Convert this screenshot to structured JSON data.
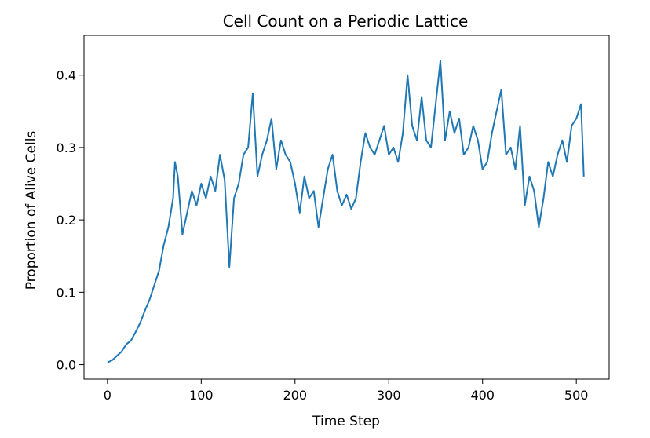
{
  "chart_data": {
    "type": "line",
    "title": "Cell Count on a Periodic Lattice",
    "xlabel": "Time Step",
    "ylabel": "Proportion of Alive Cells",
    "xlim": [
      -25,
      535
    ],
    "ylim": [
      -0.02,
      0.455
    ],
    "xticks": [
      0,
      100,
      200,
      300,
      400,
      500
    ],
    "xtick_labels": [
      "0",
      "100",
      "200",
      "300",
      "400",
      "500"
    ],
    "yticks": [
      0.0,
      0.1,
      0.2,
      0.3,
      0.4
    ],
    "ytick_labels": [
      "0.0",
      "0.1",
      "0.2",
      "0.3",
      "0.4"
    ],
    "grid": false,
    "legend": "none",
    "series": [
      {
        "color": "#1f77b4",
        "x": [
          0,
          5,
          10,
          15,
          20,
          25,
          30,
          35,
          40,
          45,
          50,
          55,
          60,
          65,
          70,
          72,
          75,
          80,
          85,
          90,
          95,
          100,
          105,
          110,
          115,
          120,
          125,
          130,
          135,
          140,
          145,
          150,
          155,
          160,
          165,
          170,
          175,
          180,
          185,
          190,
          195,
          200,
          205,
          210,
          215,
          220,
          225,
          230,
          235,
          240,
          245,
          250,
          255,
          260,
          265,
          270,
          275,
          280,
          285,
          290,
          295,
          300,
          305,
          310,
          315,
          320,
          325,
          330,
          335,
          340,
          345,
          350,
          355,
          360,
          365,
          370,
          375,
          380,
          385,
          390,
          395,
          400,
          405,
          410,
          415,
          420,
          425,
          430,
          435,
          440,
          445,
          450,
          455,
          460,
          465,
          470,
          475,
          480,
          485,
          490,
          495,
          500,
          505,
          508
        ],
        "y": [
          0.003,
          0.006,
          0.012,
          0.018,
          0.028,
          0.033,
          0.045,
          0.058,
          0.075,
          0.09,
          0.11,
          0.13,
          0.165,
          0.19,
          0.23,
          0.28,
          0.26,
          0.18,
          0.21,
          0.24,
          0.22,
          0.25,
          0.23,
          0.26,
          0.24,
          0.29,
          0.255,
          0.135,
          0.23,
          0.25,
          0.29,
          0.3,
          0.375,
          0.26,
          0.29,
          0.31,
          0.34,
          0.27,
          0.31,
          0.29,
          0.28,
          0.25,
          0.21,
          0.26,
          0.23,
          0.24,
          0.19,
          0.23,
          0.27,
          0.29,
          0.24,
          0.22,
          0.235,
          0.215,
          0.23,
          0.28,
          0.32,
          0.3,
          0.29,
          0.31,
          0.33,
          0.29,
          0.3,
          0.28,
          0.32,
          0.4,
          0.33,
          0.31,
          0.37,
          0.31,
          0.3,
          0.36,
          0.42,
          0.31,
          0.35,
          0.32,
          0.34,
          0.29,
          0.3,
          0.33,
          0.31,
          0.27,
          0.28,
          0.32,
          0.35,
          0.38,
          0.29,
          0.3,
          0.27,
          0.33,
          0.22,
          0.26,
          0.24,
          0.19,
          0.23,
          0.28,
          0.26,
          0.29,
          0.31,
          0.28,
          0.33,
          0.34,
          0.36,
          0.26
        ]
      }
    ]
  }
}
